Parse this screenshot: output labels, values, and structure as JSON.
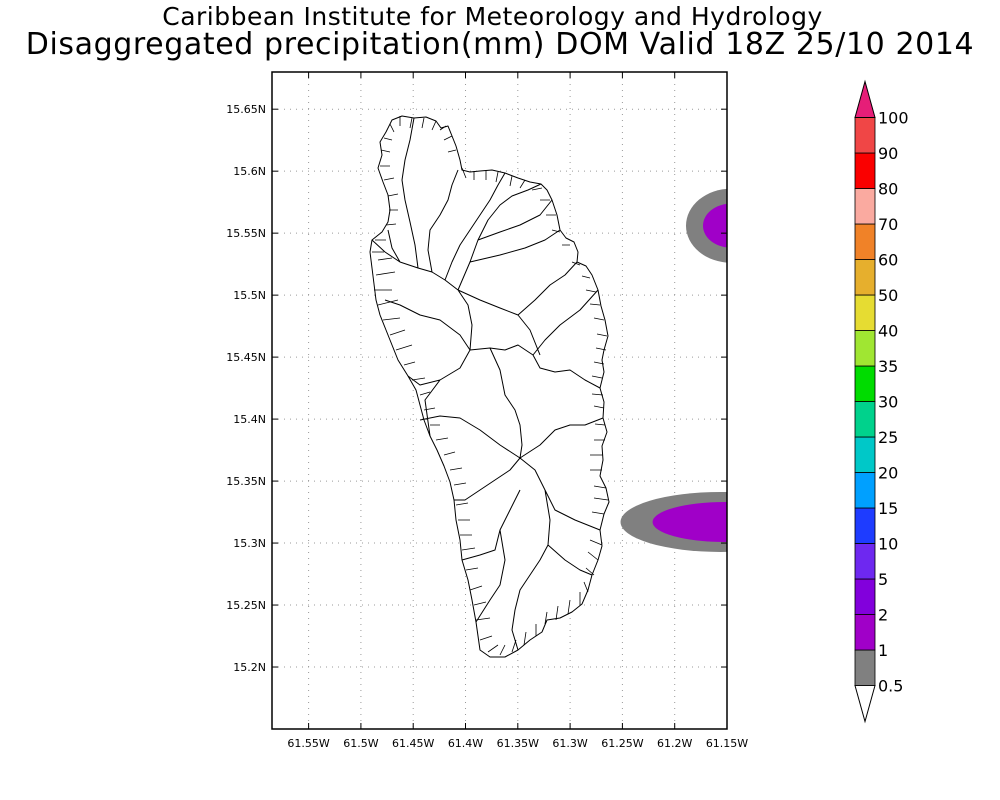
{
  "header": {
    "line1": "Caribbean Institute for Meteorology and Hydrology",
    "line2": "Disaggregated precipitation(mm) DOM Valid 18Z 25/10 2014"
  },
  "map": {
    "region": "Dominica",
    "lon_range": [
      -61.585,
      -61.15
    ],
    "lat_range": [
      15.15,
      15.68
    ],
    "lat_ticks": [
      {
        "value": 15.2,
        "label": "15.2N"
      },
      {
        "value": 15.25,
        "label": "15.25N"
      },
      {
        "value": 15.3,
        "label": "15.3N"
      },
      {
        "value": 15.35,
        "label": "15.35N"
      },
      {
        "value": 15.4,
        "label": "15.4N"
      },
      {
        "value": 15.45,
        "label": "15.45N"
      },
      {
        "value": 15.5,
        "label": "15.5N"
      },
      {
        "value": 15.55,
        "label": "15.55N"
      },
      {
        "value": 15.6,
        "label": "15.6N"
      },
      {
        "value": 15.65,
        "label": "15.65N"
      }
    ],
    "lon_ticks": [
      {
        "value": -61.55,
        "label": "61.55W"
      },
      {
        "value": -61.5,
        "label": "61.5W"
      },
      {
        "value": -61.45,
        "label": "61.45W"
      },
      {
        "value": -61.4,
        "label": "61.4W"
      },
      {
        "value": -61.35,
        "label": "61.35W"
      },
      {
        "value": -61.3,
        "label": "61.3W"
      },
      {
        "value": -61.25,
        "label": "61.25W"
      },
      {
        "value": -61.2,
        "label": "61.2W"
      },
      {
        "value": -61.15,
        "label": "61.15W"
      }
    ],
    "grid": true,
    "precip_areas": [
      {
        "center_lon": -61.15,
        "center_lat": 15.556,
        "level": "0.5-1",
        "color": "#808080"
      },
      {
        "center_lon": -61.15,
        "center_lat": 15.556,
        "level": "1-2",
        "color": "#a000c8"
      },
      {
        "center_lon": -61.16,
        "center_lat": 15.317,
        "level": "0.5-1",
        "color": "#808080"
      },
      {
        "center_lon": -61.16,
        "center_lat": 15.317,
        "level": "1-2",
        "color": "#a000c8"
      }
    ]
  },
  "legend": {
    "levels": [
      "0.5",
      "1",
      "2",
      "5",
      "10",
      "15",
      "20",
      "25",
      "30",
      "35",
      "40",
      "50",
      "60",
      "70",
      "80",
      "90",
      "100"
    ],
    "colors": [
      "#ffffff",
      "#808080",
      "#a000c8",
      "#8200dc",
      "#6e28f0",
      "#1e3cff",
      "#00a0ff",
      "#00c8c8",
      "#00d28c",
      "#00dc00",
      "#a0e632",
      "#e6dc32",
      "#e6af2d",
      "#f08228",
      "#faaaa0",
      "#fa0000",
      "#f04646",
      "#e61e78"
    ]
  }
}
